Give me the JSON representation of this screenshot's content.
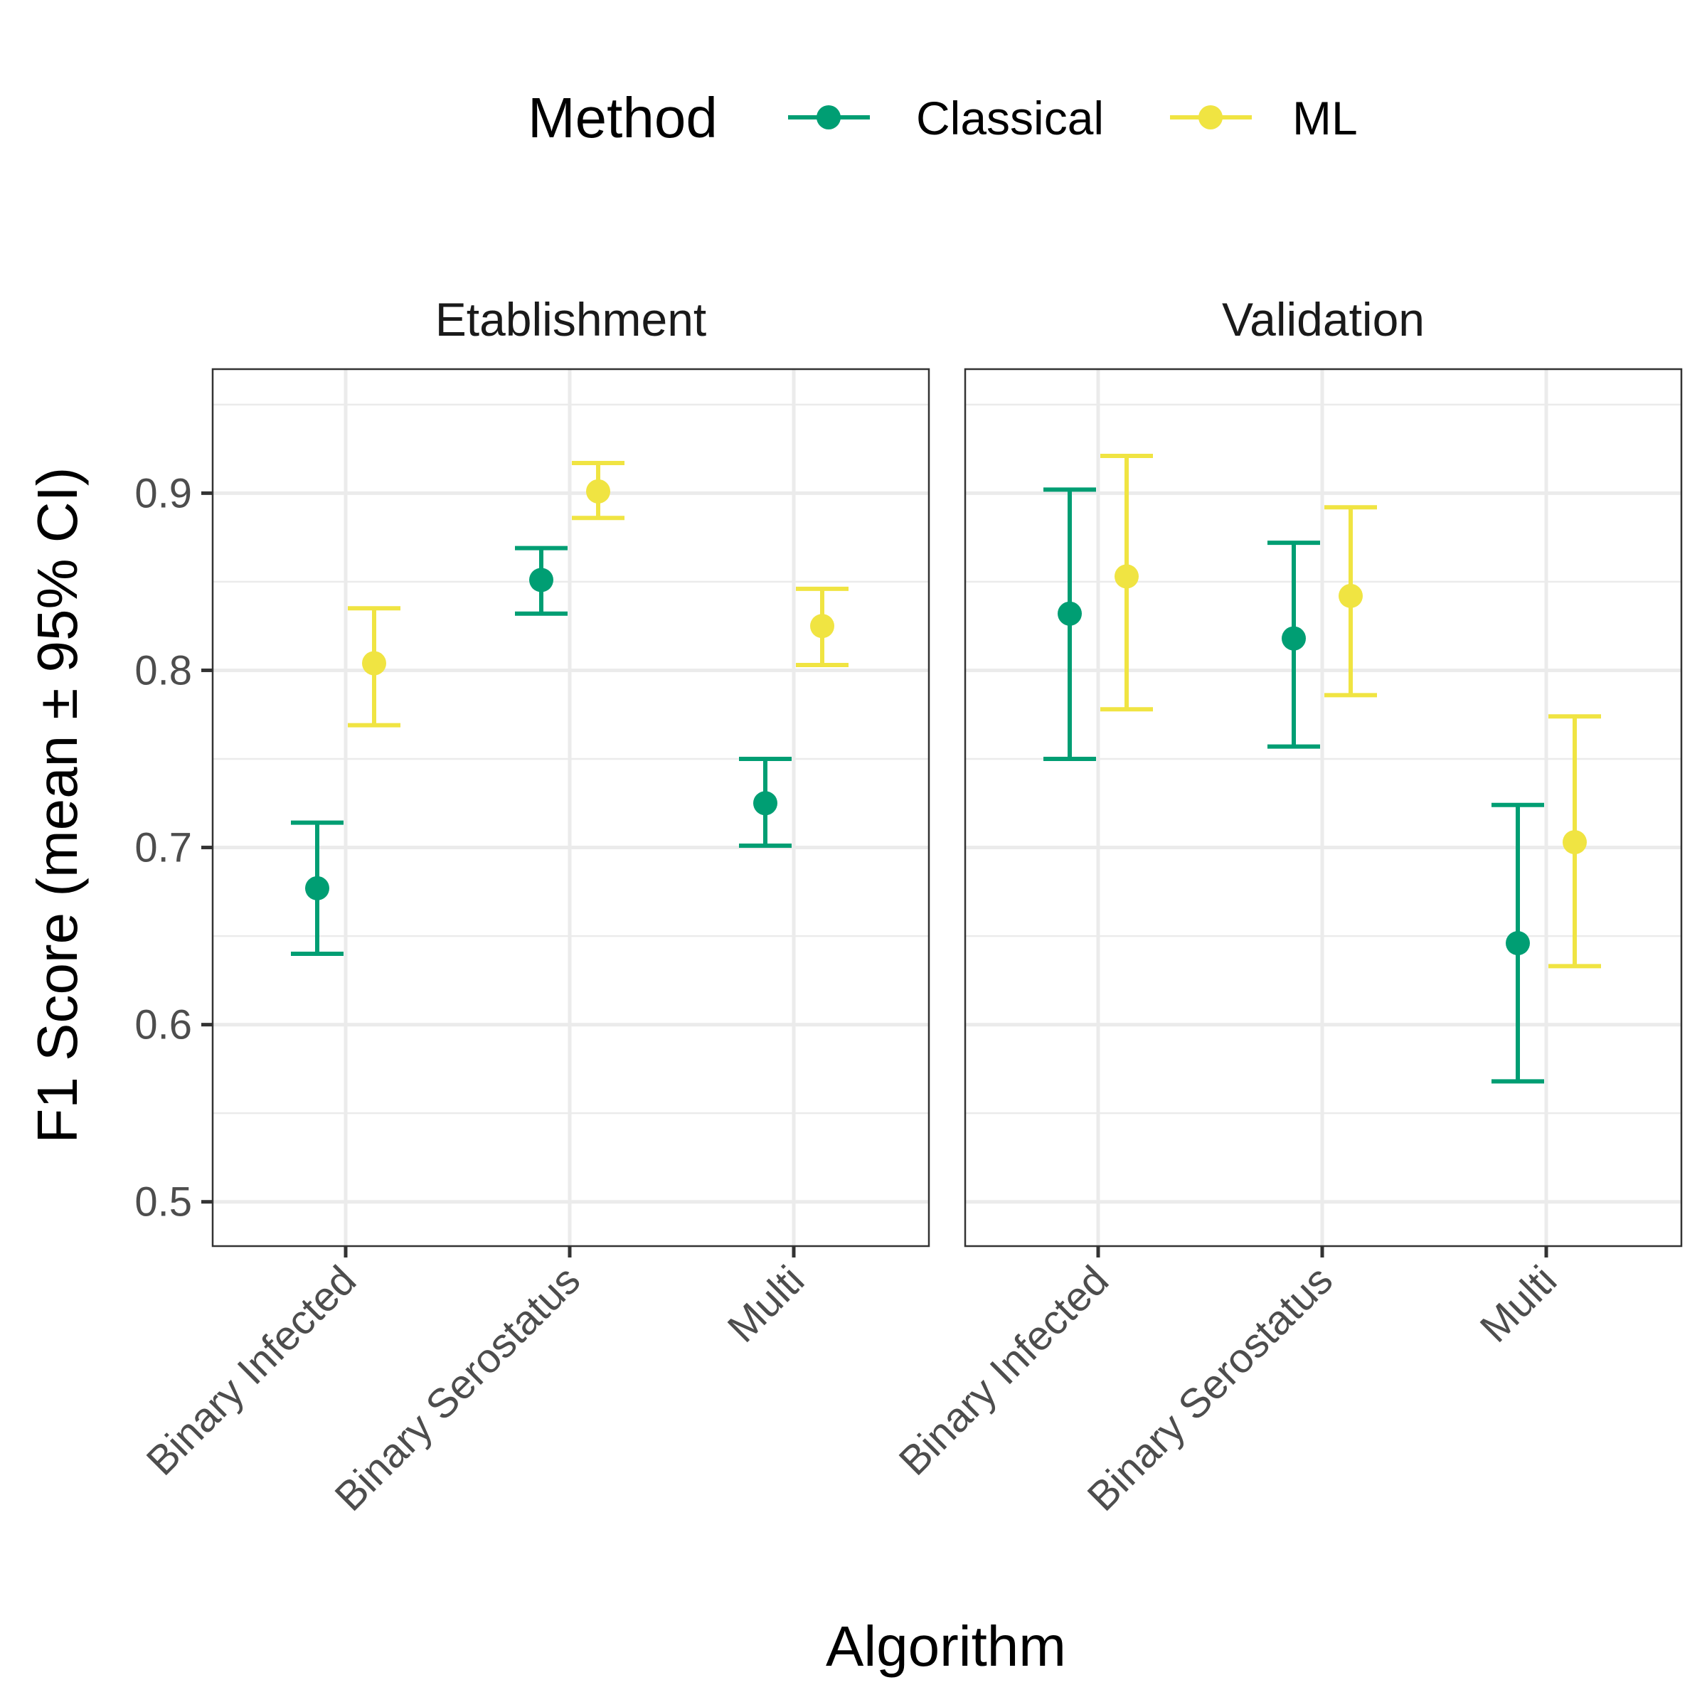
{
  "chart_data": {
    "type": "errorbar",
    "xlabel": "Algorithm",
    "ylabel": "F1 Score (mean ± 95% CI)",
    "ylim": [
      0.475,
      0.97
    ],
    "yticks": [
      0.5,
      0.6,
      0.7,
      0.8,
      0.9
    ],
    "ytick_labels": [
      "0.5",
      "0.6",
      "0.7",
      "0.8",
      "0.9"
    ],
    "categories": [
      "Binary Infected",
      "Binary Serostatus",
      "Multi"
    ],
    "grid": true,
    "legend": {
      "title": "Method",
      "position": "top",
      "entries": [
        {
          "name": "Classical",
          "color": "#009E73"
        },
        {
          "name": "ML",
          "color": "#F0E442"
        }
      ]
    },
    "panels": [
      {
        "title": "Etablishment",
        "series": [
          {
            "name": "Classical",
            "mean": [
              0.677,
              0.851,
              0.725
            ],
            "lower": [
              0.64,
              0.832,
              0.701
            ],
            "upper": [
              0.714,
              0.869,
              0.75
            ]
          },
          {
            "name": "ML",
            "mean": [
              0.804,
              0.901,
              0.825
            ],
            "lower": [
              0.769,
              0.886,
              0.803
            ],
            "upper": [
              0.835,
              0.917,
              0.846
            ]
          }
        ]
      },
      {
        "title": "Validation",
        "series": [
          {
            "name": "Classical",
            "mean": [
              0.832,
              0.818,
              0.646
            ],
            "lower": [
              0.75,
              0.757,
              0.568
            ],
            "upper": [
              0.902,
              0.872,
              0.724
            ]
          },
          {
            "name": "ML",
            "mean": [
              0.853,
              0.842,
              0.703
            ],
            "lower": [
              0.778,
              0.786,
              0.633
            ],
            "upper": [
              0.921,
              0.892,
              0.774
            ]
          }
        ]
      }
    ]
  }
}
